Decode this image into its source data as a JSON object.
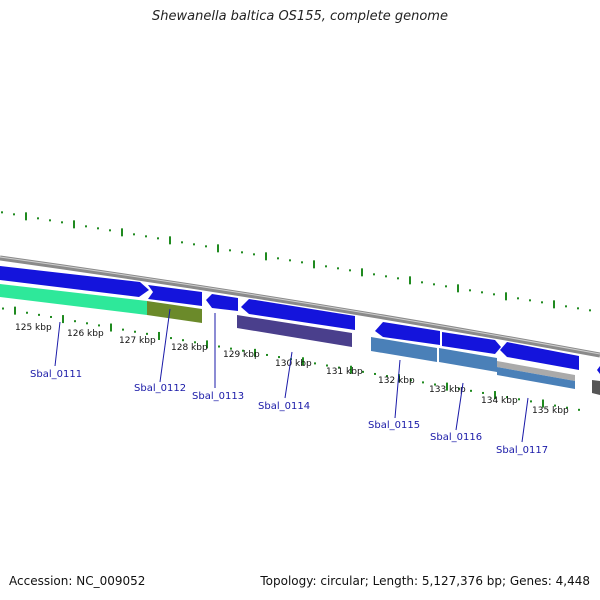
{
  "header": {
    "title": "Shewanella baltica OS155, complete genome"
  },
  "footer": {
    "accession": "Accession: NC_009052",
    "genome_info": "Topology: circular; Length: 5,127,376 bp; Genes: 4,448"
  },
  "ruler_labels": [
    "125 kbp",
    "126 kbp",
    "127 kbp",
    "128 kbp",
    "129 kbp",
    "130 kbp",
    "131 kbp",
    "132 kbp",
    "133 kbp",
    "134 kbp",
    "135 kbp"
  ],
  "gene_labels": [
    "Sbal_0111",
    "Sbal_0112",
    "Sbal_0113",
    "Sbal_0114",
    "Sbal_0115",
    "Sbal_0116",
    "Sbal_0117"
  ],
  "colors": {
    "backbone": "#8a8a8a",
    "cds": "#1414dc",
    "tick": "#1f8a1f",
    "gene_label": "#1a1aa8",
    "feature_green": "#2ee89a",
    "feature_olive": "#6b8a2a",
    "feature_purple": "#4a3f8c",
    "feature_steel": "#4a80b8",
    "feature_grey": "#aaaaaa"
  }
}
